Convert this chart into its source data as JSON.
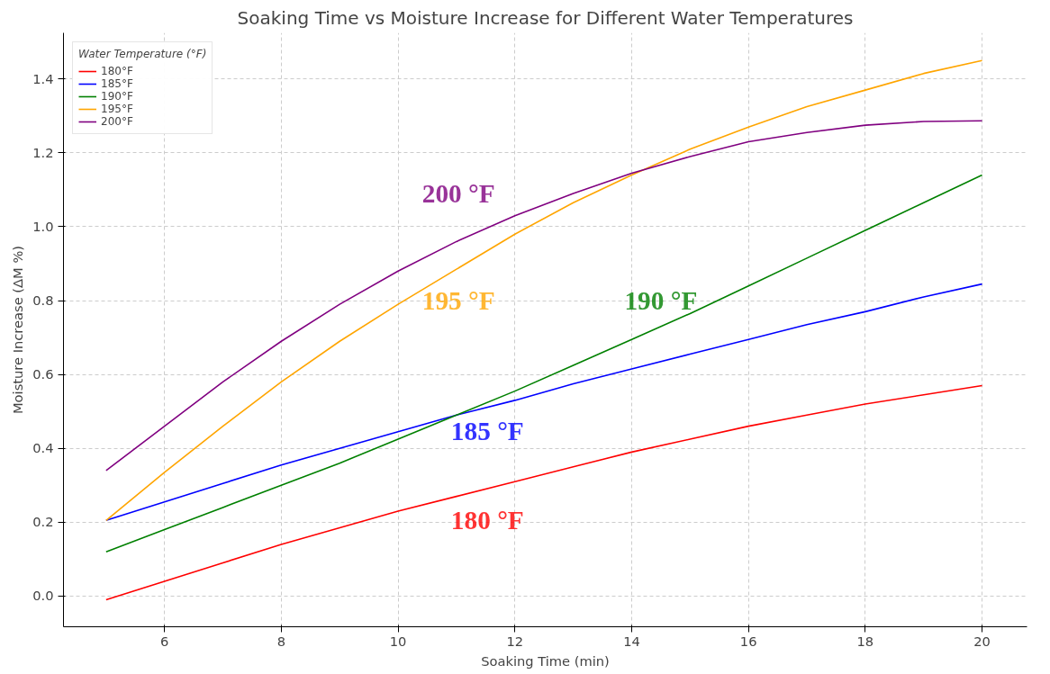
{
  "chart_data": {
    "type": "line",
    "title": "Soaking Time vs Moisture Increase for Different Water Temperatures",
    "xlabel": "Soaking Time (min)",
    "ylabel": "Moisture Increase (ΔM %)",
    "legend_title": "Water Temperature (°F)",
    "x": [
      5,
      6,
      7,
      8,
      9,
      10,
      11,
      12,
      13,
      14,
      15,
      16,
      17,
      18,
      19,
      20
    ],
    "series": [
      {
        "name": "180°F",
        "color": "#ff0000",
        "values": [
          -0.01,
          0.04,
          0.09,
          0.14,
          0.185,
          0.23,
          0.27,
          0.31,
          0.35,
          0.39,
          0.425,
          0.46,
          0.49,
          0.52,
          0.545,
          0.57
        ]
      },
      {
        "name": "185°F",
        "color": "#0000ff",
        "values": [
          0.205,
          0.255,
          0.305,
          0.355,
          0.4,
          0.445,
          0.49,
          0.53,
          0.575,
          0.615,
          0.655,
          0.695,
          0.735,
          0.77,
          0.81,
          0.845
        ]
      },
      {
        "name": "190°F",
        "color": "#008000",
        "values": [
          0.12,
          0.18,
          0.24,
          0.3,
          0.36,
          0.425,
          0.49,
          0.555,
          0.625,
          0.695,
          0.765,
          0.84,
          0.915,
          0.99,
          1.065,
          1.14
        ]
      },
      {
        "name": "195°F",
        "color": "#ffa500",
        "values": [
          0.205,
          0.335,
          0.46,
          0.58,
          0.69,
          0.79,
          0.885,
          0.98,
          1.065,
          1.14,
          1.21,
          1.27,
          1.325,
          1.37,
          1.415,
          1.45
        ]
      },
      {
        "name": "200°F",
        "color": "#800080",
        "values": [
          0.34,
          0.46,
          0.58,
          0.69,
          0.79,
          0.88,
          0.96,
          1.03,
          1.09,
          1.145,
          1.19,
          1.23,
          1.255,
          1.275,
          1.285,
          1.287
        ]
      }
    ],
    "annotations": [
      "180 °F",
      "185 °F",
      "190 °F",
      "195 °F",
      "200 °F"
    ],
    "xlim": [
      4.27,
      20.77
    ],
    "ylim": [
      -0.083,
      1.525
    ],
    "xticks": [
      6,
      8,
      10,
      12,
      14,
      16,
      18,
      20
    ],
    "yticks": [
      {
        "value": 0,
        "label": "0.0"
      },
      {
        "value": 0.2,
        "label": "0.2"
      },
      {
        "value": 0.4,
        "label": "0.4"
      },
      {
        "value": 0.6,
        "label": "0.6"
      },
      {
        "value": 0.8,
        "label": "0.8"
      },
      {
        "value": 1.0,
        "label": "1.0"
      },
      {
        "value": 1.2,
        "label": "1.2"
      },
      {
        "value": 1.4,
        "label": "1.4"
      }
    ],
    "grid": true,
    "legend": "top left",
    "marker": "none",
    "line_style": "solid"
  }
}
